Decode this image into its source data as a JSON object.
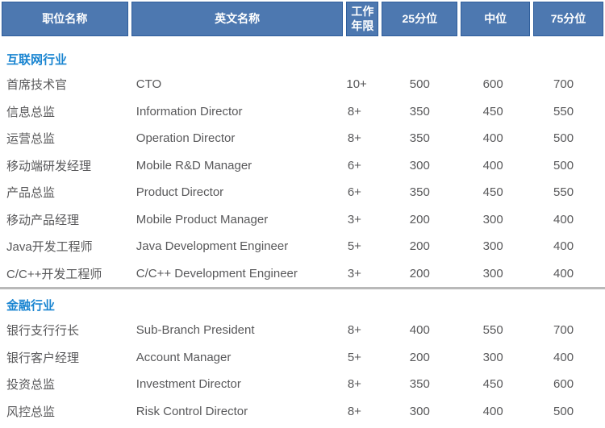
{
  "colors": {
    "header_bg": "#4d78b0",
    "header_border": "#2e5d9b",
    "header_text": "#ffffff",
    "section_title": "#1a85d1",
    "body_text": "#58585a",
    "divider": "#b9b9b9"
  },
  "table": {
    "columns": [
      {
        "label": "职位名称"
      },
      {
        "label": "英文名称"
      },
      {
        "label": "工作年限"
      },
      {
        "label": "25分位"
      },
      {
        "label": "中位"
      },
      {
        "label": "75分位"
      }
    ],
    "sections": [
      {
        "title": "互联网行业",
        "rows": [
          [
            "首席技术官",
            "CTO",
            "10+",
            "500",
            "600",
            "700"
          ],
          [
            "信息总监",
            "Information Director",
            "8+",
            "350",
            "450",
            "550"
          ],
          [
            "运营总监",
            "Operation Director",
            "8+",
            "350",
            "400",
            "500"
          ],
          [
            "移动端研发经理",
            "Mobile R&D Manager",
            "6+",
            "300",
            "400",
            "500"
          ],
          [
            "产品总监",
            "Product Director",
            "6+",
            "350",
            "450",
            "550"
          ],
          [
            "移动产品经理",
            "Mobile Product Manager",
            "3+",
            "200",
            "300",
            "400"
          ],
          [
            "Java开发工程师",
            "Java Development Engineer",
            "5+",
            "200",
            "300",
            "400"
          ],
          [
            "C/C++开发工程师",
            "C/C++ Development Engineer",
            "3+",
            "200",
            "300",
            "400"
          ]
        ]
      },
      {
        "title": "金融行业",
        "rows": [
          [
            "银行支行行长",
            "Sub-Branch President",
            "8+",
            "400",
            "550",
            "700"
          ],
          [
            "银行客户经理",
            "Account Manager",
            "5+",
            "200",
            "300",
            "400"
          ],
          [
            "投资总监",
            "Investment Director",
            "8+",
            "350",
            "450",
            "600"
          ],
          [
            "风控总监",
            "Risk Control Director",
            "8+",
            "300",
            "400",
            "500"
          ]
        ]
      }
    ]
  }
}
